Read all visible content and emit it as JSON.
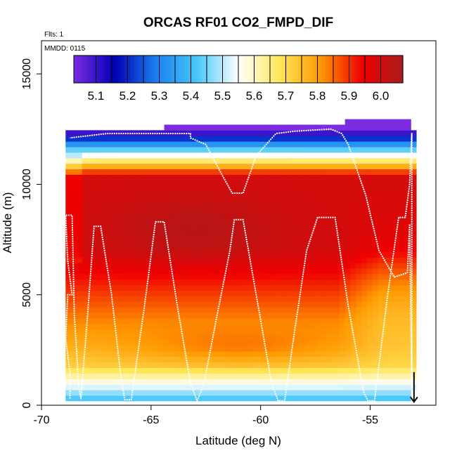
{
  "chart_data": {
    "type": "heatmap",
    "title": "ORCAS RF01 CO2_FMPD_DIF",
    "annotations": {
      "flights": "Flts: 1",
      "date": "MMDD: 0115"
    },
    "xlabel": "Latitude (deg N)",
    "ylabel": "Altitude (m)",
    "xlim": [
      -70,
      -52
    ],
    "ylim": [
      0,
      16500
    ],
    "x_ticks": [
      -70,
      -65,
      -60,
      -55
    ],
    "x_tick_labels": [
      "-70",
      "-65",
      "-60",
      "-55"
    ],
    "y_ticks": [
      0,
      5000,
      10000,
      15000
    ],
    "y_tick_labels": [
      "0",
      "5000",
      "10000",
      "15000"
    ],
    "colorbar": {
      "min": 5.03,
      "max": 6.07,
      "ticks": [
        5.1,
        5.2,
        5.3,
        5.4,
        5.5,
        5.6,
        5.7,
        5.8,
        5.9,
        6.0
      ],
      "tick_labels": [
        "5.1",
        "5.2",
        "5.3",
        "5.4",
        "5.5",
        "5.6",
        "5.7",
        "5.8",
        "5.9",
        "6.0"
      ],
      "colors": [
        "#7b2ce0",
        "#0000b4",
        "#1a7ff0",
        "#48c8f8",
        "#ffffff",
        "#ffe75a",
        "#ff9800",
        "#f00000",
        "#a81c1c"
      ]
    },
    "grid": {
      "lat_range": [
        -68.9,
        -52.9
      ],
      "alt_range": [
        200,
        12800
      ],
      "lat_step": 0.25,
      "alt_step": 250
    },
    "flight_track": [
      [
        -68.7,
        300
      ],
      [
        -68.7,
        1500
      ],
      [
        -68.9,
        3000
      ],
      [
        -68.8,
        5000
      ],
      [
        -68.6,
        5000
      ],
      [
        -68.8,
        6500
      ],
      [
        -68.9,
        8600
      ],
      [
        -68.6,
        8600
      ],
      [
        -68.5,
        4000
      ],
      [
        -68.4,
        2500
      ],
      [
        -68.3,
        800
      ],
      [
        -68.2,
        300
      ],
      [
        -67.9,
        4000
      ],
      [
        -67.6,
        8100
      ],
      [
        -67.3,
        8100
      ],
      [
        -66.8,
        5000
      ],
      [
        -66.4,
        1500
      ],
      [
        -66.2,
        250
      ],
      [
        -65.9,
        250
      ],
      [
        -65.3,
        4500
      ],
      [
        -64.8,
        8300
      ],
      [
        -64.4,
        8300
      ],
      [
        -63.8,
        4500
      ],
      [
        -63.2,
        1000
      ],
      [
        -62.9,
        200
      ],
      [
        -62.6,
        900
      ],
      [
        -62.0,
        4000
      ],
      [
        -61.4,
        7000
      ],
      [
        -61.2,
        8400
      ],
      [
        -60.8,
        8400
      ],
      [
        -60.2,
        5000
      ],
      [
        -59.5,
        1000
      ],
      [
        -59.2,
        200
      ],
      [
        -58.9,
        200
      ],
      [
        -58.5,
        3000
      ],
      [
        -57.9,
        7000
      ],
      [
        -57.4,
        8500
      ],
      [
        -56.6,
        8500
      ],
      [
        -56.0,
        4500
      ],
      [
        -55.3,
        600
      ],
      [
        -55.1,
        200
      ],
      [
        -54.8,
        200
      ],
      [
        -54.2,
        5000
      ],
      [
        -53.7,
        8500
      ],
      [
        -53.4,
        8500
      ],
      [
        -53.2,
        10000
      ],
      [
        -53.1,
        12300
      ],
      [
        -53.1,
        8000
      ],
      [
        -53.1,
        5000
      ],
      [
        -53.1,
        2500
      ],
      [
        -53.1,
        800
      ],
      [
        -53.2,
        8200
      ],
      [
        -53.3,
        6000
      ],
      [
        -53.9,
        5800
      ],
      [
        -54.6,
        7000
      ],
      [
        -55.2,
        9500
      ],
      [
        -56.0,
        11800
      ],
      [
        -56.3,
        12300
      ],
      [
        -56.8,
        12500
      ],
      [
        -58.5,
        12400
      ],
      [
        -59.3,
        12300
      ],
      [
        -60.2,
        11300
      ],
      [
        -60.8,
        9600
      ],
      [
        -61.3,
        9600
      ],
      [
        -61.8,
        10500
      ],
      [
        -62.5,
        11800
      ],
      [
        -63.2,
        12100
      ],
      [
        -63.2,
        12300
      ],
      [
        -67.0,
        12300
      ],
      [
        -68.7,
        12100
      ]
    ],
    "arrow_marker": {
      "lat": -53.0,
      "alt": 700,
      "direction": "down"
    }
  }
}
